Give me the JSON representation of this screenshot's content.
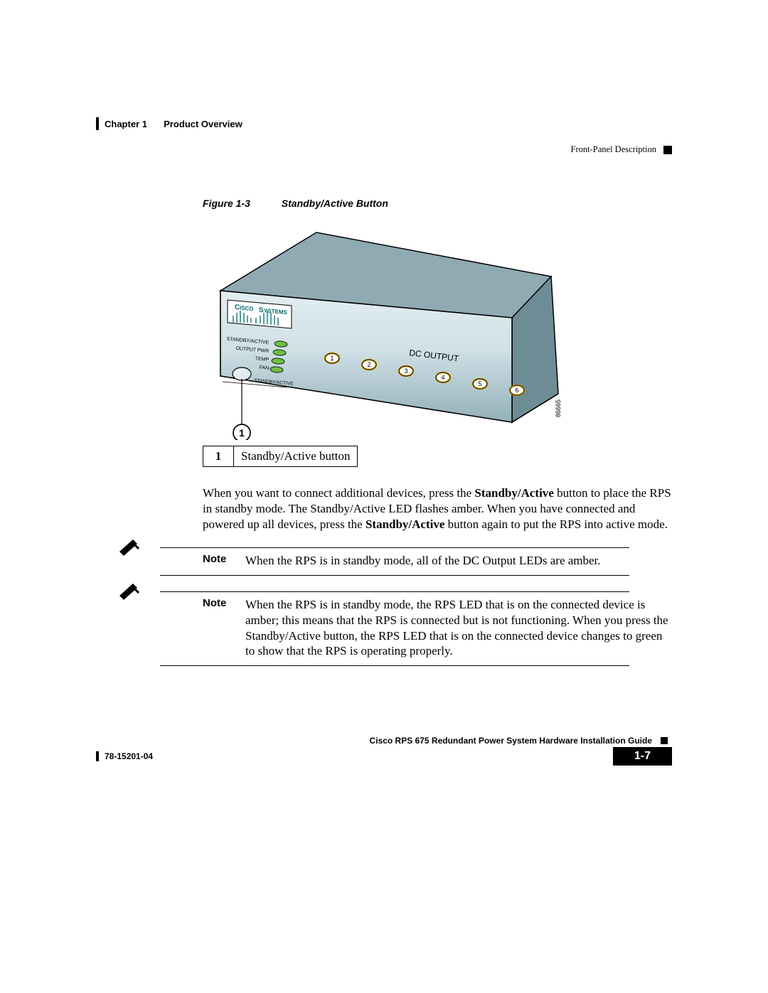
{
  "header": {
    "chapter": "Chapter 1",
    "chapterTitle": "Product Overview",
    "section": "Front-Panel Description"
  },
  "figure": {
    "label": "Figure 1-3",
    "title": "Standby/Active Button",
    "artId": "86665",
    "device": {
      "brand": "CISCO SYSTEMS",
      "logoColor": "#006666",
      "topFaceColor": "#8faab2",
      "frontFaceTop": "#d6e5ea",
      "frontFaceBottom": "#9cb7bf",
      "leds": [
        "STANDBY/ACTIVE",
        "OUTPUT PWR",
        "TEMP",
        "FAN"
      ],
      "ledColor": "#6fbf44",
      "buttonLabel": "STANDBY/ACTIVE",
      "dcOutputLabel": "DC OUTPUT",
      "dcPorts": [
        1,
        2,
        3,
        4,
        5,
        6
      ],
      "portRing": "#d9a200",
      "portFill": "#ffffff"
    },
    "callout": {
      "num": "1",
      "text": "Standby/Active button"
    }
  },
  "paragraph": {
    "pre": "When you want to connect additional devices, press the ",
    "b1": "Standby/Active",
    "mid1": " button to place the RPS in standby mode. The Standby/Active LED flashes amber. When you have connected and powered up all devices, press the ",
    "b2": "Standby/Active",
    "post": " button again to put the RPS into active mode."
  },
  "notes": [
    {
      "label": "Note",
      "text": "When the RPS is in standby mode, all of the DC Output LEDs are amber."
    },
    {
      "label": "Note",
      "text": "When the RPS is in standby mode, the RPS LED that is on the connected device is amber; this means that the RPS is connected but is not functioning. When you press the Standby/Active button, the RPS LED that is on the connected device changes to green to show that the RPS is operating properly."
    }
  ],
  "footer": {
    "guide": "Cisco RPS 675 Redundant Power System Hardware Installation Guide",
    "docNum": "78-15201-04",
    "pageNum": "1-7"
  },
  "style": {
    "bodyFontSize": 17,
    "sansFont": "Arial",
    "ruleColor": "#000000"
  }
}
